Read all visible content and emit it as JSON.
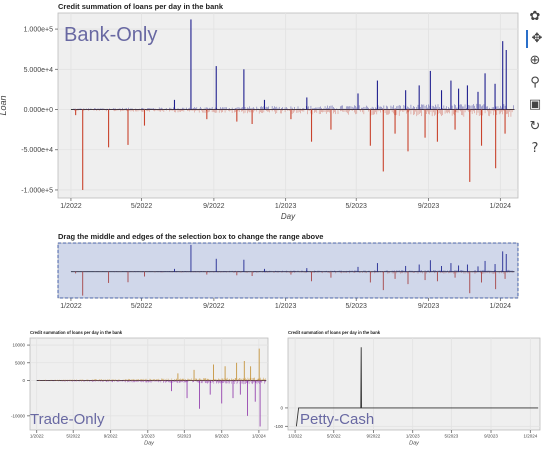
{
  "chart_data": [
    {
      "type": "bar",
      "title": "Credit summation of loans per day in the bank",
      "annotation": "Bank-Only",
      "xlabel": "Day",
      "ylabel": "Loan",
      "x_ticks": [
        "1/2022",
        "5/2022",
        "9/2022",
        "1/2023",
        "5/2023",
        "9/2023",
        "1/2024"
      ],
      "y_ticks": [
        "1.000e+5",
        "5.000e+4",
        "0.000e+0",
        "-5.000e+4",
        "-1.000e+5"
      ],
      "x_range": [
        "2021-12-10",
        "2024-01-31"
      ],
      "ylim": [
        -110000,
        120000
      ],
      "grid": true,
      "series": [
        {
          "color": "#1f1f8f",
          "points": [
            [
              "2022-06-26",
              12000
            ],
            [
              "2022-07-24",
              112000
            ],
            [
              "2022-09-05",
              54000
            ],
            [
              "2022-10-22",
              50000
            ],
            [
              "2022-11-26",
              12000
            ],
            [
              "2023-02-06",
              15000
            ],
            [
              "2023-05-04",
              20000
            ],
            [
              "2023-06-06",
              36000
            ],
            [
              "2023-07-24",
              24000
            ],
            [
              "2023-08-16",
              30000
            ],
            [
              "2023-09-04",
              48000
            ],
            [
              "2023-09-23",
              24000
            ],
            [
              "2023-10-09",
              36000
            ],
            [
              "2023-10-22",
              26000
            ],
            [
              "2023-11-06",
              30000
            ],
            [
              "2023-11-24",
              22000
            ],
            [
              "2023-12-06",
              45000
            ],
            [
              "2023-12-23",
              32000
            ],
            [
              "2024-01-05",
              85000
            ],
            [
              "2024-01-11",
              74000
            ]
          ]
        },
        {
          "color": "#c9432d",
          "points": [
            [
              "2022-01-09",
              -7000
            ],
            [
              "2022-01-21",
              -100000
            ],
            [
              "2022-03-06",
              -47000
            ],
            [
              "2022-04-08",
              -44000
            ],
            [
              "2022-05-06",
              -20000
            ],
            [
              "2022-08-20",
              -12000
            ],
            [
              "2022-10-10",
              -15000
            ],
            [
              "2022-11-05",
              -18000
            ],
            [
              "2023-01-10",
              -12000
            ],
            [
              "2023-02-14",
              -40000
            ],
            [
              "2023-03-19",
              -25000
            ],
            [
              "2023-05-25",
              -45000
            ],
            [
              "2023-06-16",
              -77000
            ],
            [
              "2023-07-06",
              -30000
            ],
            [
              "2023-07-28",
              -52000
            ],
            [
              "2023-08-26",
              -35000
            ],
            [
              "2023-09-16",
              -40000
            ],
            [
              "2023-10-16",
              -25000
            ],
            [
              "2023-11-10",
              -90000
            ],
            [
              "2023-11-30",
              -45000
            ],
            [
              "2023-12-24",
              -73000
            ],
            [
              "2024-01-09",
              -30000
            ]
          ]
        }
      ]
    },
    {
      "type": "bar",
      "role": "range-selector",
      "title": "Drag the middle and edges of the selection box to change the range above",
      "x_ticks": [
        "1/2022",
        "5/2022",
        "9/2022",
        "1/2023",
        "5/2023",
        "9/2023",
        "1/2024"
      ],
      "x_range": [
        "2021-12-10",
        "2024-01-31"
      ],
      "ylim": [
        -110000,
        120000
      ],
      "selection": [
        "2021-12-10",
        "2024-01-31"
      ]
    },
    {
      "type": "bar",
      "title": "Credit summation of loans per day in the bank",
      "annotation": "Trade-Only",
      "xlabel": "Day",
      "x_ticks": [
        "1/2022",
        "5/2022",
        "9/2022",
        "1/2023",
        "5/2023",
        "9/2023",
        "1/2024"
      ],
      "y_ticks": [
        "10000",
        "5000",
        "0",
        "-10000"
      ],
      "x_range": [
        "2021-12-10",
        "2024-01-31"
      ],
      "ylim": [
        -14000,
        12000
      ],
      "grid": true,
      "series": [
        {
          "color": "#c08a2a",
          "points": [
            [
              "2023-04-10",
              2000
            ],
            [
              "2023-06-02",
              3000
            ],
            [
              "2023-08-05",
              4500
            ],
            [
              "2023-09-12",
              4000
            ],
            [
              "2023-10-20",
              5000
            ],
            [
              "2023-11-14",
              5500
            ],
            [
              "2023-12-05",
              4000
            ],
            [
              "2024-01-02",
              9000
            ]
          ]
        },
        {
          "color": "#8b2fa8",
          "points": [
            [
              "2023-03-20",
              -3000
            ],
            [
              "2023-05-10",
              -5000
            ],
            [
              "2023-06-20",
              -8000
            ],
            [
              "2023-07-25",
              -4000
            ],
            [
              "2023-09-01",
              -6500
            ],
            [
              "2023-10-08",
              -5000
            ],
            [
              "2023-11-01",
              -4000
            ],
            [
              "2023-11-25",
              -10000
            ],
            [
              "2024-01-05",
              -13000
            ],
            [
              "2023-12-20",
              -6000
            ]
          ]
        }
      ]
    },
    {
      "type": "line",
      "title": "Credit summation of loans per day in the bank",
      "annotation": "Petty-Cash",
      "xlabel": "Day",
      "x_ticks": [
        "1/2022",
        "5/2022",
        "9/2022",
        "1/2023",
        "5/2023",
        "9/2023",
        "1/2024"
      ],
      "y_ticks": [
        "0",
        "-100"
      ],
      "x_range": [
        "2021-12-10",
        "2024-01-31"
      ],
      "ylim": [
        -120,
        380
      ],
      "grid": true,
      "series": [
        {
          "color": "#333333",
          "points": [
            [
              "2022-01-05",
              -100
            ],
            [
              "2022-01-12",
              0
            ],
            [
              "2022-07-24",
              0
            ],
            [
              "2022-07-25",
              330
            ],
            [
              "2022-07-26",
              0
            ],
            [
              "2024-01-25",
              0
            ]
          ]
        }
      ]
    }
  ],
  "toolbar": {
    "items": [
      {
        "name": "bokeh-logo-icon",
        "glyph": "✿"
      },
      {
        "name": "pan-icon",
        "glyph": "✥"
      },
      {
        "name": "box-zoom-icon",
        "glyph": "⊕"
      },
      {
        "name": "wheel-zoom-icon",
        "glyph": "⚲"
      },
      {
        "name": "save-icon",
        "glyph": "▣"
      },
      {
        "name": "reset-icon",
        "glyph": "↻"
      },
      {
        "name": "help-icon",
        "glyph": "?"
      }
    ]
  }
}
